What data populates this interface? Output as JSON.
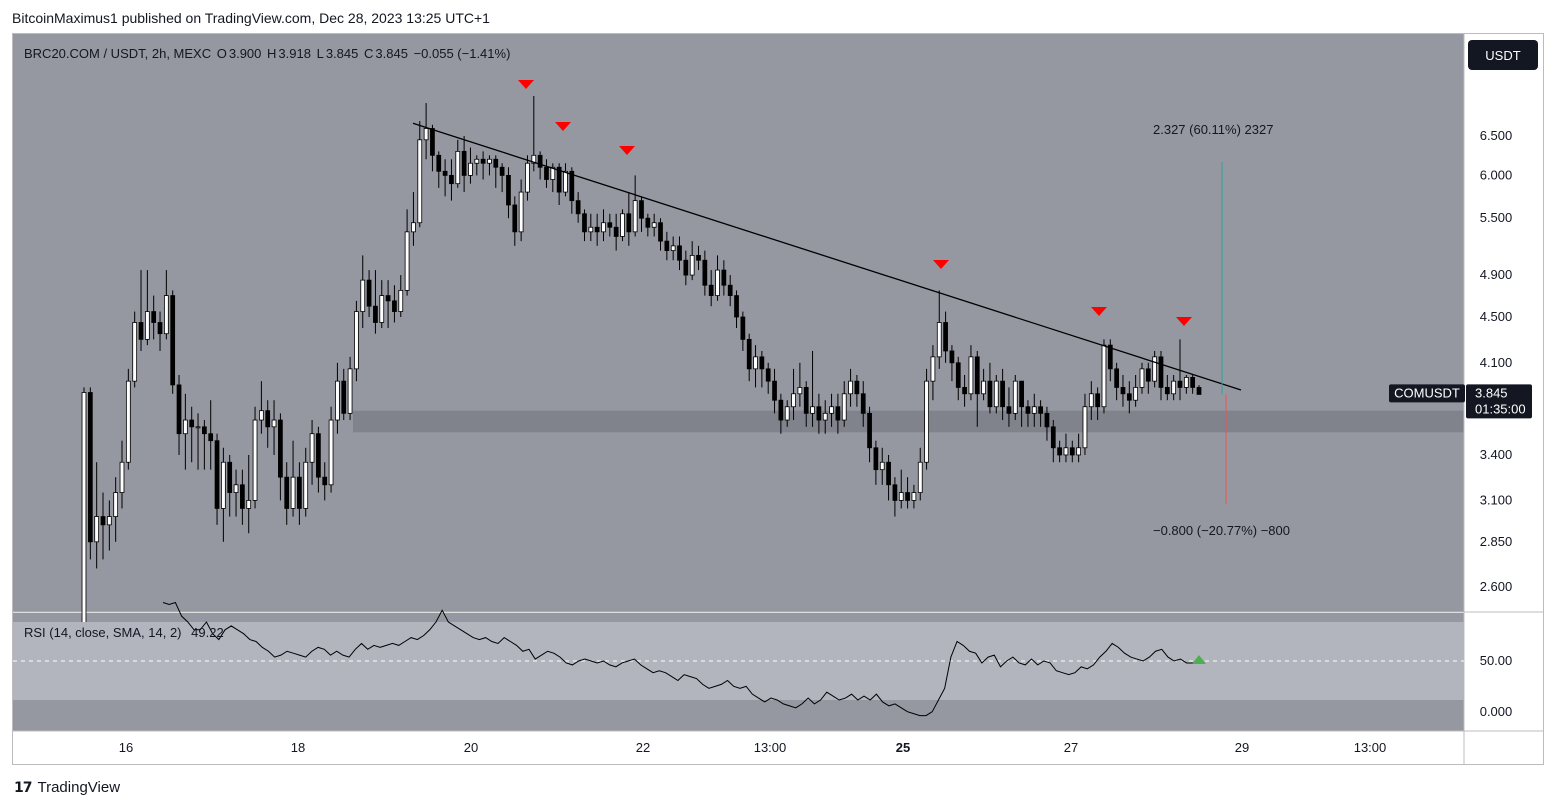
{
  "header": {
    "published_by": "BitcoinMaximus1 published on TradingView.com, Dec 28, 2023 13:25 UTC+1"
  },
  "legend": {
    "symbol": "BRC20.COM / USDT, 2h, MEXC",
    "open_label": "O",
    "open": "3.900",
    "high_label": "H",
    "high": "3.918",
    "low_label": "L",
    "low": "3.845",
    "close_label": "C",
    "close": "3.845",
    "change": "−0.055 (−1.41%)"
  },
  "currency_button": "USDT",
  "price_tag": {
    "symbol": "COMUSDT",
    "price": "3.845",
    "countdown": "01:35:00"
  },
  "annotations": {
    "upper_measure": "2.327 (60.11%) 2327",
    "lower_measure": "−0.800 (−20.77%) −800"
  },
  "rsi": {
    "label": "RSI (14, close, SMA, 14, 2)",
    "value": "49.22",
    "ticks": [
      "50.00",
      "0.000"
    ]
  },
  "footer": {
    "brand": "TradingView"
  },
  "colors": {
    "plot_bg": "#9598a1",
    "support_band": "#80838c",
    "rsi_band": "#b2b5be",
    "candle_up": "#ffffff",
    "candle_down": "#000000",
    "marker": "#ff0000",
    "measure_up": "#26a69a",
    "measure_down": "#ef5350"
  },
  "chart_data": {
    "type": "candlestick",
    "title": "BRC20.COM / USDT, 2h, MEXC",
    "y_ticks": [
      "6.500",
      "6.000",
      "5.500",
      "4.900",
      "4.500",
      "4.100",
      "3.400",
      "3.100",
      "2.850",
      "2.600"
    ],
    "x_ticks": [
      "16",
      "18",
      "20",
      "22",
      "13:00",
      "25",
      "27",
      "29",
      "13:00"
    ],
    "ylim": [
      2.4,
      7.2
    ],
    "support_zone": [
      3.56,
      3.72
    ],
    "trendline": {
      "from": [
        "19",
        6.67
      ],
      "to": [
        "28 12:00",
        3.88
      ]
    },
    "markers": [
      "20",
      "21",
      "21",
      "25",
      "27",
      "28"
    ],
    "grid": false,
    "candles": [
      [
        2.4,
        3.86,
        2.4,
        3.9
      ],
      [
        3.86,
        2.85,
        2.75,
        3.9
      ],
      [
        2.85,
        3.0,
        2.7,
        3.35
      ],
      [
        3.0,
        2.95,
        2.75,
        3.15
      ],
      [
        2.95,
        3.0,
        2.8,
        3.1
      ],
      [
        3.0,
        3.15,
        2.85,
        3.25
      ],
      [
        3.15,
        3.35,
        3.05,
        3.5
      ],
      [
        3.35,
        3.95,
        3.3,
        4.05
      ],
      [
        3.95,
        4.45,
        3.9,
        4.55
      ],
      [
        4.45,
        4.3,
        4.2,
        4.95
      ],
      [
        4.3,
        4.55,
        4.25,
        4.95
      ],
      [
        4.55,
        4.45,
        4.3,
        4.7
      ],
      [
        4.45,
        4.35,
        4.2,
        4.55
      ],
      [
        4.35,
        4.7,
        4.3,
        4.95
      ],
      [
        4.7,
        3.92,
        3.85,
        4.75
      ],
      [
        3.92,
        3.55,
        3.4,
        4.0
      ],
      [
        3.55,
        3.65,
        3.3,
        3.85
      ],
      [
        3.65,
        3.6,
        3.35,
        3.75
      ],
      [
        3.6,
        3.6,
        3.3,
        3.7
      ],
      [
        3.6,
        3.55,
        3.3,
        3.65
      ],
      [
        3.55,
        3.5,
        3.3,
        3.8
      ],
      [
        3.5,
        3.05,
        2.95,
        3.55
      ],
      [
        3.05,
        3.35,
        2.85,
        3.45
      ],
      [
        3.35,
        3.15,
        3.0,
        3.4
      ],
      [
        3.15,
        3.2,
        3.0,
        3.3
      ],
      [
        3.2,
        3.05,
        2.95,
        3.3
      ],
      [
        3.05,
        3.1,
        2.9,
        3.4
      ],
      [
        3.1,
        3.65,
        3.05,
        3.75
      ],
      [
        3.65,
        3.72,
        3.55,
        3.95
      ],
      [
        3.72,
        3.6,
        3.45,
        3.8
      ],
      [
        3.6,
        3.65,
        3.4,
        3.8
      ],
      [
        3.65,
        3.25,
        3.1,
        3.7
      ],
      [
        3.25,
        3.05,
        2.95,
        3.35
      ],
      [
        3.05,
        3.25,
        3.0,
        3.5
      ],
      [
        3.25,
        3.05,
        2.95,
        3.35
      ],
      [
        3.05,
        3.35,
        3.0,
        3.45
      ],
      [
        3.35,
        3.55,
        3.2,
        3.65
      ],
      [
        3.55,
        3.25,
        3.15,
        3.6
      ],
      [
        3.25,
        3.2,
        3.1,
        3.35
      ],
      [
        3.2,
        3.65,
        3.15,
        3.75
      ],
      [
        3.65,
        3.95,
        3.55,
        4.1
      ],
      [
        3.95,
        3.7,
        3.65,
        4.05
      ],
      [
        3.7,
        4.05,
        3.65,
        4.15
      ],
      [
        4.05,
        4.55,
        3.95,
        4.65
      ],
      [
        4.55,
        4.85,
        4.4,
        5.1
      ],
      [
        4.85,
        4.6,
        4.5,
        4.95
      ],
      [
        4.6,
        4.45,
        4.35,
        4.95
      ],
      [
        4.45,
        4.7,
        4.4,
        4.85
      ],
      [
        4.7,
        4.65,
        4.4,
        4.85
      ],
      [
        4.65,
        4.55,
        4.45,
        4.8
      ],
      [
        4.55,
        4.75,
        4.5,
        4.9
      ],
      [
        4.75,
        5.35,
        4.7,
        5.6
      ],
      [
        5.35,
        5.45,
        5.2,
        5.8
      ],
      [
        5.45,
        6.45,
        5.4,
        6.7
      ],
      [
        6.45,
        6.6,
        6.2,
        6.95
      ],
      [
        6.6,
        6.25,
        6.05,
        6.65
      ],
      [
        6.25,
        6.05,
        5.85,
        6.3
      ],
      [
        6.05,
        6.0,
        5.75,
        6.2
      ],
      [
        6.0,
        5.9,
        5.7,
        6.2
      ],
      [
        5.9,
        6.3,
        5.85,
        6.45
      ],
      [
        6.3,
        6.0,
        5.8,
        6.5
      ],
      [
        6.0,
        6.15,
        5.9,
        6.35
      ],
      [
        6.15,
        6.2,
        6.0,
        6.25
      ],
      [
        6.2,
        6.15,
        5.95,
        6.3
      ],
      [
        6.15,
        6.2,
        6.0,
        6.25
      ],
      [
        6.2,
        6.1,
        5.85,
        6.25
      ],
      [
        6.1,
        6.0,
        5.8,
        6.15
      ],
      [
        6.0,
        5.65,
        5.5,
        6.1
      ],
      [
        5.65,
        5.35,
        5.2,
        5.75
      ],
      [
        5.35,
        5.8,
        5.25,
        5.95
      ],
      [
        5.8,
        6.15,
        5.7,
        6.25
      ],
      [
        6.15,
        6.25,
        6.05,
        7.05
      ],
      [
        6.25,
        6.1,
        5.95,
        6.3
      ],
      [
        6.1,
        5.95,
        5.85,
        6.2
      ],
      [
        5.95,
        6.1,
        5.8,
        6.15
      ],
      [
        6.1,
        5.8,
        5.65,
        6.15
      ],
      [
        5.8,
        6.05,
        5.75,
        6.15
      ],
      [
        6.05,
        5.7,
        5.55,
        6.1
      ],
      [
        5.7,
        5.55,
        5.45,
        5.8
      ],
      [
        5.55,
        5.35,
        5.25,
        5.6
      ],
      [
        5.35,
        5.4,
        5.25,
        5.55
      ],
      [
        5.4,
        5.35,
        5.2,
        5.55
      ],
      [
        5.35,
        5.45,
        5.25,
        5.6
      ],
      [
        5.45,
        5.4,
        5.3,
        5.55
      ],
      [
        5.4,
        5.3,
        5.15,
        5.55
      ],
      [
        5.3,
        5.55,
        5.25,
        5.6
      ],
      [
        5.55,
        5.35,
        5.2,
        5.8
      ],
      [
        5.35,
        5.7,
        5.3,
        6.0
      ],
      [
        5.7,
        5.5,
        5.35,
        5.75
      ],
      [
        5.5,
        5.4,
        5.3,
        5.55
      ],
      [
        5.4,
        5.45,
        5.3,
        5.55
      ],
      [
        5.45,
        5.25,
        5.15,
        5.5
      ],
      [
        5.25,
        5.15,
        5.05,
        5.35
      ],
      [
        5.15,
        5.2,
        5.05,
        5.3
      ],
      [
        5.2,
        5.05,
        4.95,
        5.3
      ],
      [
        5.05,
        4.9,
        4.8,
        5.15
      ],
      [
        4.9,
        5.1,
        4.85,
        5.25
      ],
      [
        5.1,
        5.05,
        4.95,
        5.2
      ],
      [
        5.05,
        4.8,
        4.7,
        5.15
      ],
      [
        4.8,
        4.7,
        4.6,
        4.95
      ],
      [
        4.7,
        4.95,
        4.65,
        5.1
      ],
      [
        4.95,
        4.8,
        4.7,
        5.05
      ],
      [
        4.8,
        4.7,
        4.6,
        4.9
      ],
      [
        4.7,
        4.5,
        4.4,
        4.75
      ],
      [
        4.5,
        4.3,
        4.2,
        4.55
      ],
      [
        4.3,
        4.05,
        3.95,
        4.35
      ],
      [
        4.05,
        4.15,
        3.9,
        4.25
      ],
      [
        4.15,
        4.05,
        3.9,
        4.2
      ],
      [
        4.05,
        3.95,
        3.85,
        4.1
      ],
      [
        3.95,
        3.8,
        3.7,
        4.05
      ],
      [
        3.8,
        3.65,
        3.55,
        3.85
      ],
      [
        3.65,
        3.75,
        3.6,
        3.8
      ],
      [
        3.75,
        3.85,
        3.65,
        4.05
      ],
      [
        3.85,
        3.9,
        3.75,
        4.1
      ],
      [
        3.9,
        3.7,
        3.6,
        3.95
      ],
      [
        3.7,
        3.75,
        3.6,
        4.2
      ],
      [
        3.75,
        3.65,
        3.55,
        3.85
      ],
      [
        3.65,
        3.7,
        3.55,
        3.8
      ],
      [
        3.7,
        3.75,
        3.6,
        3.85
      ],
      [
        3.75,
        3.65,
        3.55,
        3.85
      ],
      [
        3.65,
        3.85,
        3.6,
        3.95
      ],
      [
        3.85,
        3.95,
        3.75,
        4.05
      ],
      [
        3.95,
        3.85,
        3.75,
        4.0
      ],
      [
        3.85,
        3.7,
        3.6,
        3.95
      ],
      [
        3.7,
        3.45,
        3.35,
        3.75
      ],
      [
        3.45,
        3.3,
        3.2,
        3.5
      ],
      [
        3.3,
        3.35,
        3.2,
        3.45
      ],
      [
        3.35,
        3.2,
        3.1,
        3.4
      ],
      [
        3.2,
        3.1,
        3.0,
        3.25
      ],
      [
        3.1,
        3.15,
        3.05,
        3.3
      ],
      [
        3.15,
        3.1,
        3.05,
        3.25
      ],
      [
        3.1,
        3.15,
        3.05,
        3.2
      ],
      [
        3.15,
        3.35,
        3.1,
        3.45
      ],
      [
        3.35,
        3.95,
        3.3,
        4.05
      ],
      [
        3.95,
        4.15,
        3.8,
        4.25
      ],
      [
        4.15,
        4.45,
        4.05,
        4.75
      ],
      [
        4.45,
        4.2,
        4.1,
        4.55
      ],
      [
        4.2,
        4.1,
        3.95,
        4.25
      ],
      [
        4.1,
        3.9,
        3.8,
        4.15
      ],
      [
        3.9,
        3.85,
        3.75,
        4.0
      ],
      [
        3.85,
        4.15,
        3.8,
        4.25
      ],
      [
        4.15,
        3.85,
        3.6,
        4.2
      ],
      [
        3.85,
        3.95,
        3.8,
        4.05
      ],
      [
        3.95,
        3.75,
        3.7,
        4.1
      ],
      [
        3.75,
        3.95,
        3.7,
        4.0
      ],
      [
        3.95,
        3.75,
        3.65,
        4.05
      ],
      [
        3.75,
        3.7,
        3.6,
        3.9
      ],
      [
        3.7,
        3.95,
        3.65,
        4.0
      ],
      [
        3.95,
        3.75,
        3.6,
        3.95
      ],
      [
        3.75,
        3.7,
        3.6,
        3.8
      ],
      [
        3.7,
        3.75,
        3.6,
        3.85
      ],
      [
        3.75,
        3.7,
        3.6,
        3.8
      ],
      [
        3.7,
        3.6,
        3.5,
        3.75
      ],
      [
        3.6,
        3.45,
        3.35,
        3.65
      ],
      [
        3.45,
        3.4,
        3.35,
        3.5
      ],
      [
        3.4,
        3.45,
        3.35,
        3.55
      ],
      [
        3.45,
        3.4,
        3.35,
        3.5
      ],
      [
        3.4,
        3.45,
        3.35,
        3.55
      ],
      [
        3.45,
        3.75,
        3.4,
        3.85
      ],
      [
        3.75,
        3.85,
        3.65,
        3.95
      ],
      [
        3.85,
        3.75,
        3.65,
        3.9
      ],
      [
        3.75,
        4.25,
        3.7,
        4.3
      ],
      [
        4.25,
        4.05,
        3.95,
        4.3
      ],
      [
        4.05,
        3.9,
        3.8,
        4.1
      ],
      [
        3.9,
        3.85,
        3.75,
        4.0
      ],
      [
        3.85,
        3.8,
        3.7,
        3.95
      ],
      [
        3.8,
        3.9,
        3.75,
        4.0
      ],
      [
        3.9,
        4.05,
        3.85,
        4.1
      ],
      [
        4.05,
        3.95,
        3.85,
        4.1
      ],
      [
        3.95,
        4.15,
        3.9,
        4.2
      ],
      [
        4.15,
        3.9,
        3.8,
        4.2
      ],
      [
        3.9,
        3.85,
        3.8,
        4.0
      ],
      [
        3.85,
        3.95,
        3.8,
        4.0
      ],
      [
        3.95,
        3.9,
        3.8,
        4.3
      ],
      [
        3.9,
        3.98,
        3.85,
        4.0
      ],
      [
        3.98,
        3.9,
        3.85,
        4.0
      ],
      [
        3.9,
        3.845,
        3.845,
        3.918
      ]
    ],
    "rsi_values": [
      80,
      79,
      80,
      73,
      70,
      66,
      66,
      70,
      64,
      61,
      66,
      68,
      66,
      64,
      61,
      60,
      57,
      55,
      52,
      53,
      55,
      54,
      53,
      52,
      55,
      57,
      56,
      53,
      55,
      53,
      52,
      56,
      59,
      56,
      58,
      57,
      58,
      59,
      58,
      60,
      62,
      61,
      63,
      66,
      70,
      76,
      70,
      68,
      66,
      64,
      62,
      61,
      62,
      60,
      59,
      62,
      60,
      58,
      55,
      56,
      51,
      53,
      55,
      54,
      52,
      49,
      48,
      50,
      51,
      50,
      49,
      50,
      48,
      47,
      49,
      50,
      51,
      48,
      46,
      44,
      45,
      44,
      42,
      40,
      43,
      42,
      41,
      38,
      36,
      37,
      38,
      40,
      37,
      36,
      37,
      33,
      31,
      29,
      31,
      30,
      28,
      27,
      26,
      28,
      31,
      28,
      30,
      34,
      32,
      30,
      31,
      33,
      30,
      32,
      30,
      33,
      29,
      27,
      28,
      26,
      24,
      23,
      22,
      22,
      24,
      30,
      36,
      52,
      60,
      58,
      55,
      54,
      49,
      52,
      53,
      47,
      50,
      52,
      49,
      48,
      51,
      48,
      50,
      49,
      45,
      44,
      43,
      44,
      47,
      46,
      48,
      52,
      55,
      59,
      57,
      54,
      52,
      51,
      50,
      52,
      55,
      56,
      52,
      50,
      51,
      49,
      49,
      49.22
    ]
  }
}
